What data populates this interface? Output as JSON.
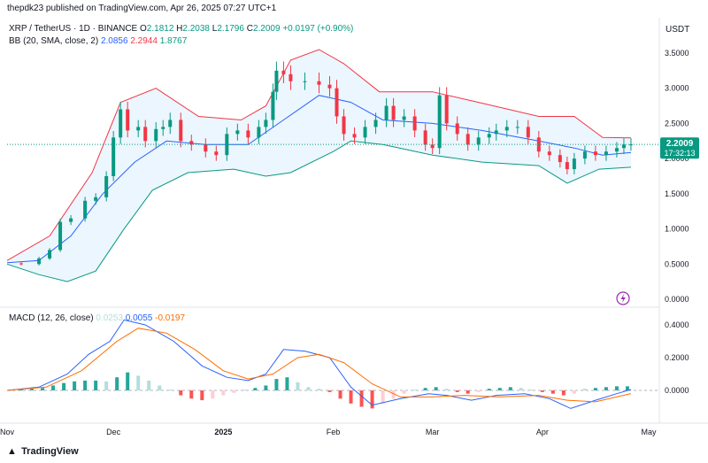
{
  "header": {
    "publisher": "thepdk23 published on TradingView.com, Apr 26, 2025 07:27 UTC+1",
    "symbol": "XRP / TetherUS · 1D · BINANCE",
    "ohlc": {
      "o_label": "O",
      "o": "2.1812",
      "h_label": "H",
      "h": "2.2038",
      "l_label": "L",
      "l": "2.1796",
      "c_label": "C",
      "c": "2.2009",
      "change": "+0.0197 (+0.90%)"
    },
    "bb": {
      "label": "BB (20, SMA, close, 2)",
      "basis": "2.0856",
      "upper": "2.2944",
      "lower": "1.8767"
    },
    "currency": "USDT",
    "last_price": "2.2009",
    "countdown": "17:32:13"
  },
  "macd_legend": {
    "label": "MACD (12, 26, close)",
    "hist": "0.0253",
    "macd": "0.0055",
    "signal": "-0.0197"
  },
  "footer": {
    "logo": "TradingView"
  },
  "icons": {
    "lightning": "lightning-icon"
  },
  "colors": {
    "up": "#089981",
    "down": "#f23645",
    "bb_upper": "#f23645",
    "bb_lower": "#089981",
    "bb_basis": "#2962ff",
    "bb_fill": "#e3f2fd",
    "macd_line": "#2962ff",
    "signal_line": "#ff6d00",
    "hist_up_strong": "#26a69a",
    "hist_up_weak": "#b2dfdb",
    "hist_down_strong": "#ff5252",
    "hist_down_weak": "#ffcdd2",
    "price_tag": "#089981",
    "lightning": "#9c27b0"
  },
  "chart_data": [
    {
      "type": "candlestick",
      "title": "XRP / TetherUS · 1D · BINANCE",
      "y_ticks": [
        "3.5000",
        "3.0000",
        "2.5000",
        "2.0000",
        "1.5000",
        "1.0000",
        "0.5000",
        "0.0000"
      ],
      "ylim": [
        0,
        3.75
      ],
      "x_ticks": [
        "Nov",
        "Dec",
        "2025",
        "Feb",
        "Mar",
        "Apr",
        "May"
      ],
      "x_range": [
        "2024-11-01",
        "2025-05-04"
      ],
      "close_points": [
        [
          "2024-11-01",
          0.51
        ],
        [
          "2024-11-05",
          0.5
        ],
        [
          "2024-11-10",
          0.58
        ],
        [
          "2024-11-13",
          0.7
        ],
        [
          "2024-11-16",
          1.1
        ],
        [
          "2024-11-19",
          1.15
        ],
        [
          "2024-11-23",
          1.4
        ],
        [
          "2024-11-26",
          1.45
        ],
        [
          "2024-11-29",
          1.75
        ],
        [
          "2024-12-01",
          2.3
        ],
        [
          "2024-12-03",
          2.7
        ],
        [
          "2024-12-05",
          2.4
        ],
        [
          "2024-12-08",
          2.45
        ],
        [
          "2024-12-10",
          2.25
        ],
        [
          "2024-12-13",
          2.42
        ],
        [
          "2024-12-15",
          2.45
        ],
        [
          "2024-12-17",
          2.55
        ],
        [
          "2024-12-20",
          2.25
        ],
        [
          "2024-12-23",
          2.2
        ],
        [
          "2024-12-27",
          2.1
        ],
        [
          "2024-12-30",
          2.05
        ],
        [
          "2025-01-02",
          2.35
        ],
        [
          "2025-01-05",
          2.4
        ],
        [
          "2025-01-08",
          2.3
        ],
        [
          "2025-01-11",
          2.45
        ],
        [
          "2025-01-13",
          2.55
        ],
        [
          "2025-01-15",
          2.95
        ],
        [
          "2025-01-16",
          3.25
        ],
        [
          "2025-01-18",
          3.2
        ],
        [
          "2025-01-20",
          3.1
        ],
        [
          "2025-01-24",
          3.1
        ],
        [
          "2025-01-28",
          3.05
        ],
        [
          "2025-01-31",
          3.0
        ],
        [
          "2025-02-02",
          2.6
        ],
        [
          "2025-02-04",
          2.35
        ],
        [
          "2025-02-07",
          2.3
        ],
        [
          "2025-02-10",
          2.45
        ],
        [
          "2025-02-13",
          2.55
        ],
        [
          "2025-02-16",
          2.75
        ],
        [
          "2025-02-18",
          2.55
        ],
        [
          "2025-02-21",
          2.6
        ],
        [
          "2025-02-24",
          2.4
        ],
        [
          "2025-02-27",
          2.2
        ],
        [
          "2025-03-01",
          2.15
        ],
        [
          "2025-03-03",
          2.9
        ],
        [
          "2025-03-05",
          2.5
        ],
        [
          "2025-03-08",
          2.35
        ],
        [
          "2025-03-11",
          2.2
        ],
        [
          "2025-03-14",
          2.3
        ],
        [
          "2025-03-17",
          2.35
        ],
        [
          "2025-03-19",
          2.4
        ],
        [
          "2025-03-22",
          2.45
        ],
        [
          "2025-03-25",
          2.45
        ],
        [
          "2025-03-28",
          2.3
        ],
        [
          "2025-03-31",
          2.1
        ],
        [
          "2025-04-03",
          2.05
        ],
        [
          "2025-04-06",
          1.95
        ],
        [
          "2025-04-08",
          1.85
        ],
        [
          "2025-04-10",
          2.0
        ],
        [
          "2025-04-13",
          2.1
        ],
        [
          "2025-04-16",
          2.05
        ],
        [
          "2025-04-19",
          2.1
        ],
        [
          "2025-04-22",
          2.15
        ],
        [
          "2025-04-24",
          2.2
        ],
        [
          "2025-04-26",
          2.2009
        ]
      ],
      "bb_upper": [
        [
          "2024-11-01",
          0.55
        ],
        [
          "2024-11-13",
          0.9
        ],
        [
          "2024-11-25",
          1.8
        ],
        [
          "2024-12-03",
          2.8
        ],
        [
          "2024-12-13",
          3.0
        ],
        [
          "2024-12-25",
          2.6
        ],
        [
          "2025-01-06",
          2.55
        ],
        [
          "2025-01-13",
          2.75
        ],
        [
          "2025-01-20",
          3.4
        ],
        [
          "2025-01-28",
          3.55
        ],
        [
          "2025-02-04",
          3.35
        ],
        [
          "2025-02-14",
          2.95
        ],
        [
          "2025-03-01",
          2.95
        ],
        [
          "2025-03-14",
          2.8
        ],
        [
          "2025-03-31",
          2.6
        ],
        [
          "2025-04-10",
          2.6
        ],
        [
          "2025-04-18",
          2.3
        ],
        [
          "2025-04-26",
          2.2944
        ]
      ],
      "bb_basis": [
        [
          "2024-11-01",
          0.52
        ],
        [
          "2024-11-10",
          0.55
        ],
        [
          "2024-11-19",
          0.9
        ],
        [
          "2024-11-28",
          1.5
        ],
        [
          "2024-12-07",
          1.95
        ],
        [
          "2024-12-16",
          2.25
        ],
        [
          "2024-12-27",
          2.2
        ],
        [
          "2025-01-08",
          2.2
        ],
        [
          "2025-01-18",
          2.55
        ],
        [
          "2025-01-28",
          2.9
        ],
        [
          "2025-02-06",
          2.8
        ],
        [
          "2025-02-15",
          2.55
        ],
        [
          "2025-03-01",
          2.5
        ],
        [
          "2025-03-15",
          2.4
        ],
        [
          "2025-03-31",
          2.25
        ],
        [
          "2025-04-10",
          2.15
        ],
        [
          "2025-04-18",
          2.05
        ],
        [
          "2025-04-26",
          2.0856
        ]
      ],
      "bb_lower": [
        [
          "2024-11-01",
          0.5
        ],
        [
          "2024-11-10",
          0.35
        ],
        [
          "2024-11-18",
          0.25
        ],
        [
          "2024-11-26",
          0.4
        ],
        [
          "2024-12-04",
          1.0
        ],
        [
          "2024-12-12",
          1.55
        ],
        [
          "2024-12-22",
          1.8
        ],
        [
          "2025-01-04",
          1.85
        ],
        [
          "2025-01-13",
          1.75
        ],
        [
          "2025-01-20",
          1.8
        ],
        [
          "2025-02-01",
          2.1
        ],
        [
          "2025-02-06",
          2.25
        ],
        [
          "2025-02-15",
          2.2
        ],
        [
          "2025-03-01",
          2.05
        ],
        [
          "2025-03-15",
          1.95
        ],
        [
          "2025-03-31",
          1.9
        ],
        [
          "2025-04-08",
          1.65
        ],
        [
          "2025-04-17",
          1.85
        ],
        [
          "2025-04-26",
          1.8767
        ]
      ],
      "last_price": 2.2009
    },
    {
      "type": "line",
      "title": "MACD (12, 26, close)",
      "y_ticks": [
        "0.4000",
        "0.2000",
        "0.0000"
      ],
      "ylim": [
        -0.13,
        0.45
      ],
      "macd": [
        [
          "2024-11-01",
          0.0
        ],
        [
          "2024-11-10",
          0.02
        ],
        [
          "2024-11-18",
          0.1
        ],
        [
          "2024-11-24",
          0.22
        ],
        [
          "2024-11-30",
          0.3
        ],
        [
          "2024-12-04",
          0.43
        ],
        [
          "2024-12-10",
          0.4
        ],
        [
          "2024-12-18",
          0.3
        ],
        [
          "2024-12-26",
          0.15
        ],
        [
          "2025-01-02",
          0.08
        ],
        [
          "2025-01-08",
          0.06
        ],
        [
          "2025-01-13",
          0.1
        ],
        [
          "2025-01-18",
          0.25
        ],
        [
          "2025-01-24",
          0.24
        ],
        [
          "2025-01-31",
          0.2
        ],
        [
          "2025-02-06",
          0.02
        ],
        [
          "2025-02-12",
          -0.09
        ],
        [
          "2025-02-20",
          -0.05
        ],
        [
          "2025-02-28",
          -0.02
        ],
        [
          "2025-03-05",
          -0.03
        ],
        [
          "2025-03-12",
          -0.06
        ],
        [
          "2025-03-19",
          -0.03
        ],
        [
          "2025-03-27",
          -0.02
        ],
        [
          "2025-04-03",
          -0.05
        ],
        [
          "2025-04-09",
          -0.11
        ],
        [
          "2025-04-16",
          -0.06
        ],
        [
          "2025-04-22",
          -0.02
        ],
        [
          "2025-04-26",
          0.0055
        ]
      ],
      "signal": [
        [
          "2024-11-01",
          0.0
        ],
        [
          "2024-11-12",
          0.02
        ],
        [
          "2024-11-22",
          0.12
        ],
        [
          "2024-12-02",
          0.3
        ],
        [
          "2024-12-08",
          0.38
        ],
        [
          "2024-12-16",
          0.35
        ],
        [
          "2024-12-24",
          0.25
        ],
        [
          "2025-01-01",
          0.12
        ],
        [
          "2025-01-08",
          0.07
        ],
        [
          "2025-01-15",
          0.1
        ],
        [
          "2025-01-22",
          0.2
        ],
        [
          "2025-01-28",
          0.22
        ],
        [
          "2025-02-04",
          0.17
        ],
        [
          "2025-02-12",
          0.04
        ],
        [
          "2025-02-20",
          -0.04
        ],
        [
          "2025-03-01",
          -0.04
        ],
        [
          "2025-03-10",
          -0.03
        ],
        [
          "2025-03-20",
          -0.04
        ],
        [
          "2025-03-31",
          -0.03
        ],
        [
          "2025-04-08",
          -0.06
        ],
        [
          "2025-04-16",
          -0.07
        ],
        [
          "2025-04-26",
          -0.0197
        ]
      ],
      "histogram": [
        [
          "2024-11-02",
          0.005
        ],
        [
          "2024-11-05",
          0.008
        ],
        [
          "2024-11-08",
          0.01
        ],
        [
          "2024-11-11",
          0.015
        ],
        [
          "2024-11-14",
          0.03
        ],
        [
          "2024-11-17",
          0.045
        ],
        [
          "2024-11-20",
          0.055
        ],
        [
          "2024-11-23",
          0.06
        ],
        [
          "2024-11-26",
          0.06
        ],
        [
          "2024-11-29",
          0.055
        ],
        [
          "2024-12-02",
          0.08
        ],
        [
          "2024-12-05",
          0.11
        ],
        [
          "2024-12-08",
          0.09
        ],
        [
          "2024-12-11",
          0.06
        ],
        [
          "2024-12-14",
          0.03
        ],
        [
          "2024-12-17",
          0.005
        ],
        [
          "2024-12-20",
          -0.03
        ],
        [
          "2024-12-23",
          -0.05
        ],
        [
          "2024-12-26",
          -0.06
        ],
        [
          "2024-12-29",
          -0.05
        ],
        [
          "2025-01-01",
          -0.03
        ],
        [
          "2025-01-04",
          -0.015
        ],
        [
          "2025-01-07",
          0.005
        ],
        [
          "2025-01-10",
          0.015
        ],
        [
          "2025-01-13",
          0.03
        ],
        [
          "2025-01-16",
          0.07
        ],
        [
          "2025-01-19",
          0.08
        ],
        [
          "2025-01-22",
          0.05
        ],
        [
          "2025-01-25",
          0.02
        ],
        [
          "2025-01-28",
          0.01
        ],
        [
          "2025-01-31",
          -0.01
        ],
        [
          "2025-02-03",
          -0.05
        ],
        [
          "2025-02-06",
          -0.08
        ],
        [
          "2025-02-09",
          -0.1
        ],
        [
          "2025-02-12",
          -0.11
        ],
        [
          "2025-02-15",
          -0.08
        ],
        [
          "2025-02-18",
          -0.05
        ],
        [
          "2025-02-21",
          -0.02
        ],
        [
          "2025-02-24",
          0.005
        ],
        [
          "2025-02-27",
          0.015
        ],
        [
          "2025-03-02",
          0.02
        ],
        [
          "2025-03-05",
          0.01
        ],
        [
          "2025-03-08",
          -0.01
        ],
        [
          "2025-03-11",
          -0.02
        ],
        [
          "2025-03-14",
          -0.01
        ],
        [
          "2025-03-17",
          0.01
        ],
        [
          "2025-03-20",
          0.015
        ],
        [
          "2025-03-23",
          0.02
        ],
        [
          "2025-03-26",
          0.015
        ],
        [
          "2025-03-29",
          0.005
        ],
        [
          "2025-04-01",
          -0.01
        ],
        [
          "2025-04-04",
          -0.02
        ],
        [
          "2025-04-07",
          -0.03
        ],
        [
          "2025-04-10",
          -0.02
        ],
        [
          "2025-04-13",
          0.01
        ],
        [
          "2025-04-16",
          0.015
        ],
        [
          "2025-04-19",
          0.02
        ],
        [
          "2025-04-22",
          0.025
        ],
        [
          "2025-04-25",
          0.025
        ]
      ]
    }
  ]
}
